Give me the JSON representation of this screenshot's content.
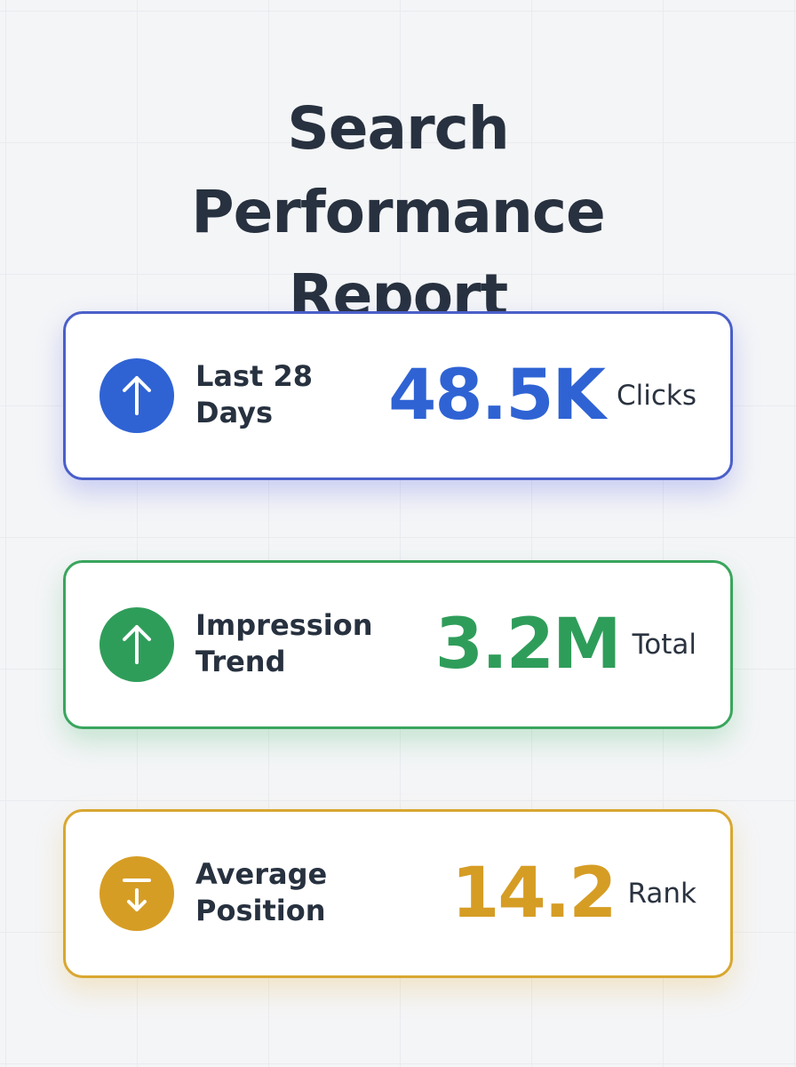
{
  "header": {
    "title": "Search Performance Report"
  },
  "cards": [
    {
      "label": "Last 28 Days",
      "value": "48.5K",
      "unit": "Clicks"
    },
    {
      "label": "Impression Trend",
      "value": "3.2M",
      "unit": "Total"
    },
    {
      "label": "Average Position",
      "value": "14.2",
      "unit": "Rank"
    }
  ]
}
